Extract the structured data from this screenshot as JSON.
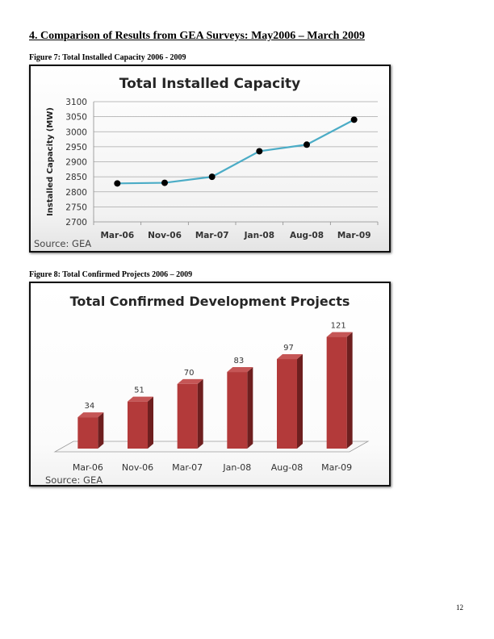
{
  "page": {
    "heading": "4. Comparison of Results from GEA Surveys: May2006 – March 2009",
    "figure7_caption": "Figure 7: Total Installed Capacity 2006 - 2009",
    "figure8_caption": "Figure 8: Total Confirmed Projects 2006 – 2009",
    "page_number": "12"
  },
  "chart_data": [
    {
      "type": "line",
      "title": "Total Installed Capacity",
      "ylabel": "Installed Capacity (MW)",
      "xlabel": "",
      "source": "Source: GEA",
      "categories": [
        "Mar-06",
        "Nov-06",
        "Mar-07",
        "Jan-08",
        "Aug-08",
        "Mar-09"
      ],
      "values": [
        2828,
        2830,
        2850,
        2935,
        2957,
        3040
      ],
      "ylim": [
        2700,
        3100
      ],
      "yticks": [
        2700,
        2750,
        2800,
        2850,
        2900,
        2950,
        3000,
        3050,
        3100
      ],
      "grid": true,
      "line_color": "#4BACC6",
      "marker_color": "#000000"
    },
    {
      "type": "bar",
      "title": "Total Confirmed Development Projects",
      "source": "Source: GEA",
      "categories": [
        "Mar-06",
        "Nov-06",
        "Mar-07",
        "Jan-08",
        "Aug-08",
        "Mar-09"
      ],
      "values": [
        34,
        51,
        70,
        83,
        97,
        121
      ],
      "data_labels": [
        "34",
        "51",
        "70",
        "83",
        "97",
        "121"
      ],
      "ylim": [
        0,
        125
      ],
      "grid": false,
      "bar_color": "#B33A3A"
    }
  ]
}
